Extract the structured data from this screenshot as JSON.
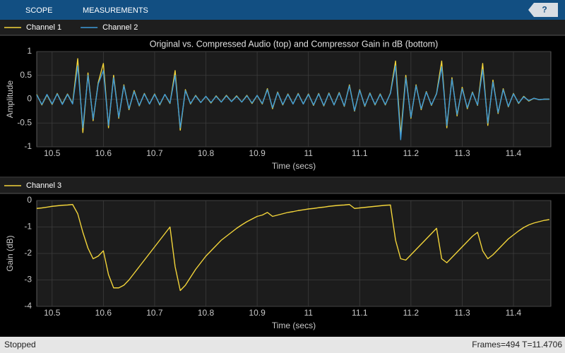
{
  "toolbar": {
    "tabs": [
      "SCOPE",
      "MEASUREMENTS"
    ],
    "help": "?"
  },
  "status": {
    "state": "Stopped",
    "frames": "Frames=494",
    "time": "T=11.4706"
  },
  "chart_data": [
    {
      "type": "line",
      "title": "Original vs. Compressed Audio (top) and Compressor Gain in dB (bottom)",
      "xlabel": "Time (secs)",
      "ylabel": "Amplitude",
      "x": [
        10.47,
        10.48,
        10.49,
        10.5,
        10.51,
        10.52,
        10.53,
        10.54,
        10.55,
        10.56,
        10.57,
        10.58,
        10.59,
        10.6,
        10.61,
        10.62,
        10.63,
        10.64,
        10.65,
        10.66,
        10.67,
        10.68,
        10.69,
        10.7,
        10.71,
        10.72,
        10.73,
        10.74,
        10.75,
        10.76,
        10.77,
        10.78,
        10.79,
        10.8,
        10.81,
        10.82,
        10.83,
        10.84,
        10.85,
        10.86,
        10.87,
        10.88,
        10.89,
        10.9,
        10.91,
        10.92,
        10.93,
        10.94,
        10.95,
        10.96,
        10.97,
        10.98,
        10.99,
        11.0,
        11.01,
        11.02,
        11.03,
        11.04,
        11.05,
        11.06,
        11.07,
        11.08,
        11.09,
        11.1,
        11.11,
        11.12,
        11.13,
        11.14,
        11.15,
        11.16,
        11.17,
        11.18,
        11.19,
        11.2,
        11.21,
        11.22,
        11.23,
        11.24,
        11.25,
        11.26,
        11.27,
        11.28,
        11.29,
        11.3,
        11.31,
        11.32,
        11.33,
        11.34,
        11.35,
        11.36,
        11.37,
        11.38,
        11.39,
        11.4,
        11.41,
        11.42,
        11.43,
        11.44,
        11.45,
        11.46,
        11.47
      ],
      "series": [
        {
          "name": "Channel 1",
          "color": "#f2d43a",
          "values": [
            0.1,
            -0.12,
            0.09,
            -0.11,
            0.12,
            -0.1,
            0.11,
            -0.09,
            0.85,
            -0.7,
            0.55,
            -0.45,
            0.35,
            0.75,
            -0.6,
            0.5,
            -0.4,
            0.3,
            -0.22,
            0.18,
            -0.14,
            0.12,
            -0.1,
            0.11,
            -0.12,
            0.1,
            -0.09,
            0.6,
            -0.65,
            0.2,
            -0.1,
            0.08,
            -0.07,
            0.06,
            -0.08,
            0.07,
            -0.06,
            0.08,
            -0.05,
            0.07,
            -0.06,
            0.08,
            -0.09,
            0.08,
            -0.1,
            0.22,
            -0.2,
            0.15,
            -0.12,
            0.11,
            -0.1,
            0.12,
            -0.1,
            0.11,
            -0.13,
            0.12,
            -0.14,
            0.13,
            -0.12,
            0.14,
            -0.15,
            0.3,
            -0.25,
            0.2,
            -0.15,
            0.13,
            -0.12,
            0.11,
            -0.12,
            0.13,
            0.8,
            -0.75,
            0.5,
            -0.4,
            0.3,
            -0.22,
            0.16,
            -0.13,
            0.12,
            0.8,
            -0.6,
            0.45,
            -0.35,
            0.25,
            -0.2,
            0.15,
            -0.13,
            0.75,
            -0.55,
            0.4,
            -0.3,
            0.22,
            -0.16,
            0.12,
            -0.09,
            0.06,
            -0.04,
            0.02,
            -0.01,
            0,
            0
          ]
        },
        {
          "name": "Channel 2",
          "color": "#3d9ad8",
          "values": [
            0.09,
            -0.11,
            0.1,
            -0.1,
            0.11,
            -0.11,
            0.1,
            -0.1,
            0.7,
            -0.6,
            0.5,
            -0.42,
            0.32,
            0.6,
            -0.55,
            0.45,
            -0.38,
            0.28,
            -0.2,
            0.16,
            -0.13,
            0.11,
            -0.1,
            0.1,
            -0.11,
            0.1,
            -0.08,
            0.5,
            -0.6,
            0.18,
            -0.09,
            0.07,
            -0.07,
            0.06,
            -0.07,
            0.06,
            -0.06,
            0.07,
            -0.05,
            0.06,
            -0.06,
            0.07,
            -0.08,
            0.08,
            -0.09,
            0.2,
            -0.18,
            0.14,
            -0.11,
            0.1,
            -0.1,
            0.11,
            -0.1,
            0.1,
            -0.12,
            0.11,
            -0.13,
            0.12,
            -0.12,
            0.13,
            -0.14,
            0.28,
            -0.24,
            0.19,
            -0.14,
            0.12,
            -0.11,
            0.1,
            -0.11,
            0.12,
            0.7,
            -0.85,
            0.45,
            -0.38,
            0.28,
            -0.2,
            0.15,
            -0.12,
            0.11,
            0.68,
            -0.55,
            0.42,
            -0.32,
            0.22,
            -0.18,
            0.14,
            -0.12,
            0.62,
            -0.5,
            0.36,
            -0.28,
            0.2,
            -0.15,
            0.11,
            -0.08,
            0.05,
            -0.03,
            0.02,
            -0.01,
            0,
            0
          ]
        }
      ],
      "xlim": [
        10.47,
        11.473
      ],
      "ylim": [
        -1,
        1
      ],
      "xticks": [
        10.5,
        10.6,
        10.7,
        10.8,
        10.9,
        11,
        11.1,
        11.2,
        11.3,
        11.4
      ],
      "yticks": [
        -1,
        -0.5,
        0,
        0.5,
        1
      ],
      "grid": true
    },
    {
      "type": "line",
      "xlabel": "Time (secs)",
      "ylabel": "Gain (dB)",
      "x": [
        10.47,
        10.48,
        10.49,
        10.5,
        10.51,
        10.52,
        10.53,
        10.54,
        10.55,
        10.56,
        10.57,
        10.58,
        10.59,
        10.6,
        10.61,
        10.62,
        10.63,
        10.64,
        10.65,
        10.66,
        10.67,
        10.68,
        10.69,
        10.7,
        10.71,
        10.72,
        10.73,
        10.74,
        10.75,
        10.76,
        10.77,
        10.78,
        10.79,
        10.8,
        10.81,
        10.82,
        10.83,
        10.84,
        10.85,
        10.86,
        10.87,
        10.88,
        10.89,
        10.9,
        10.91,
        10.92,
        10.93,
        10.94,
        10.95,
        10.96,
        10.97,
        10.98,
        10.99,
        11.0,
        11.01,
        11.02,
        11.03,
        11.04,
        11.05,
        11.06,
        11.07,
        11.08,
        11.09,
        11.1,
        11.11,
        11.12,
        11.13,
        11.14,
        11.15,
        11.16,
        11.17,
        11.18,
        11.19,
        11.2,
        11.21,
        11.22,
        11.23,
        11.24,
        11.25,
        11.26,
        11.27,
        11.28,
        11.29,
        11.3,
        11.31,
        11.32,
        11.33,
        11.34,
        11.35,
        11.36,
        11.37,
        11.38,
        11.39,
        11.4,
        11.41,
        11.42,
        11.43,
        11.44,
        11.45,
        11.46,
        11.47
      ],
      "series": [
        {
          "name": "Channel 3",
          "color": "#f2d43a",
          "values": [
            -0.3,
            -0.28,
            -0.25,
            -0.22,
            -0.2,
            -0.18,
            -0.17,
            -0.15,
            -0.5,
            -1.2,
            -1.8,
            -2.2,
            -2.1,
            -1.9,
            -2.8,
            -3.3,
            -3.3,
            -3.2,
            -3.0,
            -2.75,
            -2.5,
            -2.25,
            -2.0,
            -1.75,
            -1.5,
            -1.25,
            -1.0,
            -2.5,
            -3.4,
            -3.2,
            -2.9,
            -2.6,
            -2.35,
            -2.1,
            -1.9,
            -1.7,
            -1.5,
            -1.35,
            -1.2,
            -1.05,
            -0.92,
            -0.8,
            -0.7,
            -0.6,
            -0.55,
            -0.45,
            -0.6,
            -0.55,
            -0.5,
            -0.45,
            -0.42,
            -0.38,
            -0.35,
            -0.32,
            -0.3,
            -0.27,
            -0.25,
            -0.22,
            -0.2,
            -0.18,
            -0.17,
            -0.15,
            -0.3,
            -0.28,
            -0.26,
            -0.24,
            -0.22,
            -0.2,
            -0.18,
            -0.17,
            -1.5,
            -2.2,
            -2.25,
            -2.05,
            -1.85,
            -1.65,
            -1.45,
            -1.25,
            -1.05,
            -2.2,
            -2.35,
            -2.15,
            -1.95,
            -1.75,
            -1.55,
            -1.35,
            -1.2,
            -1.9,
            -2.2,
            -2.05,
            -1.85,
            -1.65,
            -1.45,
            -1.3,
            -1.15,
            -1.02,
            -0.92,
            -0.85,
            -0.8,
            -0.75,
            -0.72
          ]
        }
      ],
      "xlim": [
        10.47,
        11.473
      ],
      "ylim": [
        -4,
        0
      ],
      "xticks": [
        10.5,
        10.6,
        10.7,
        10.8,
        10.9,
        11,
        11.1,
        11.2,
        11.3,
        11.4
      ],
      "yticks": [
        -4,
        -3,
        -2,
        -1,
        0
      ],
      "grid": true
    }
  ]
}
